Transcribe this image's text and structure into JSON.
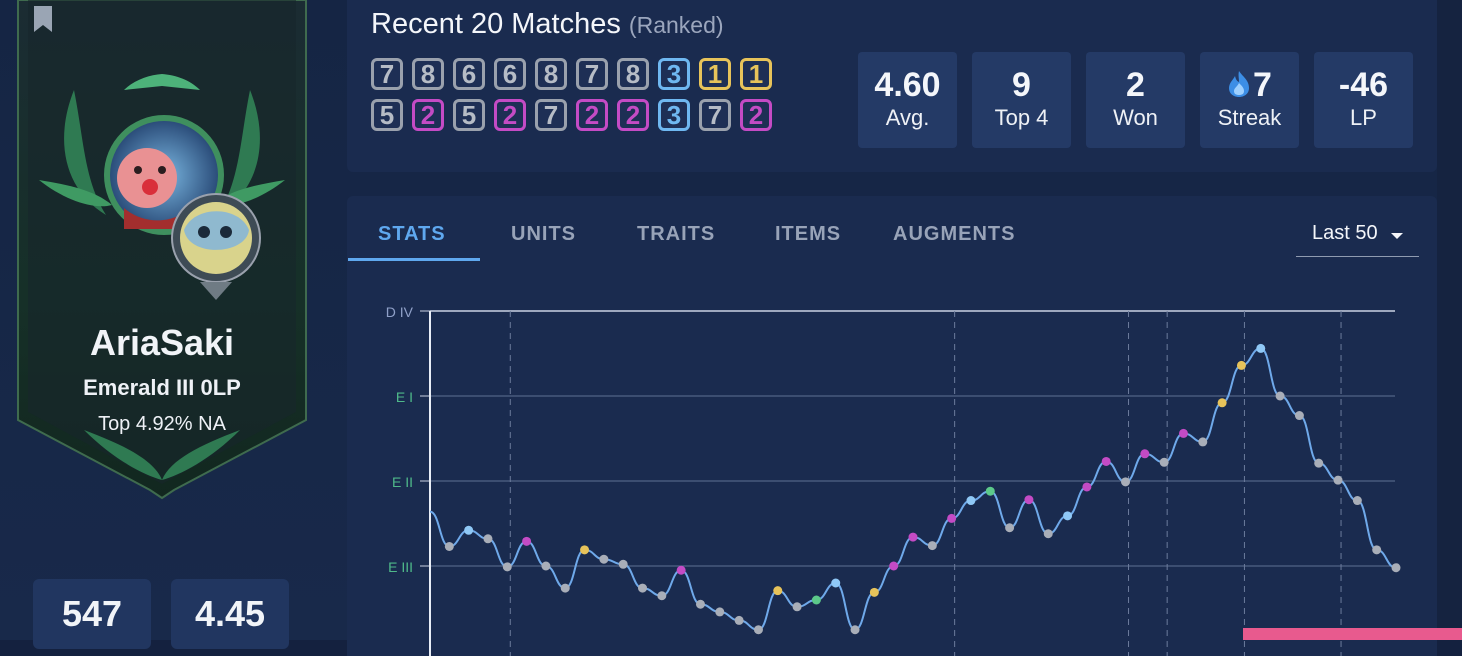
{
  "profile": {
    "name": "AriaSaki",
    "rank": "Emerald III 0LP",
    "top": "Top 4.92% NA",
    "bottom_stats": [
      "547",
      "4.45"
    ]
  },
  "matches": {
    "title": "Recent 20 Matches",
    "subtitle": "(Ranked)",
    "placements": [
      [
        7,
        8,
        6,
        6,
        8,
        7,
        8,
        3,
        1,
        1
      ],
      [
        5,
        2,
        5,
        2,
        7,
        2,
        2,
        3,
        7,
        2
      ]
    ],
    "summary": [
      {
        "value": "4.60",
        "label": "Avg."
      },
      {
        "value": "9",
        "label": "Top 4"
      },
      {
        "value": "2",
        "label": "Won"
      },
      {
        "value": "7",
        "label": "Streak",
        "icon": "flame-icon"
      },
      {
        "value": "-46",
        "label": "LP"
      }
    ]
  },
  "tabs": [
    "STATS",
    "UNITS",
    "TRAITS",
    "ITEMS",
    "AUGMENTS"
  ],
  "active_tab": "STATS",
  "filter": {
    "selected": "Last 50"
  },
  "colors": {
    "accent": "#5fa8ef",
    "placement_first": "#e7c35a",
    "placement_second": "#c44bc5",
    "placement_third": "#6fb8f1",
    "placement_other": "#9aa1ad",
    "point_green": "#5cc98a",
    "line": "#6fa9ea"
  },
  "chart_data": {
    "type": "line",
    "title": "",
    "xlabel": "",
    "ylabel": "",
    "y_ticks": [
      "D IV",
      "E I",
      "E II",
      "E III"
    ],
    "ylim": [
      "E III",
      "D IV"
    ],
    "grid": true,
    "points_comment": "y = rank progress where 0=E III, 1=E II, 2=E I, 3=D IV; color = placement group (1,2,3,4-8,green)",
    "points": [
      {
        "y": 0.64,
        "c": "o"
      },
      {
        "y": 0.23,
        "c": "o"
      },
      {
        "y": 0.42,
        "c": "b"
      },
      {
        "y": 0.32,
        "c": "o"
      },
      {
        "y": -0.01,
        "c": "o"
      },
      {
        "y": 0.29,
        "c": "p"
      },
      {
        "y": 0.0,
        "c": "o"
      },
      {
        "y": -0.26,
        "c": "o"
      },
      {
        "y": 0.19,
        "c": "y"
      },
      {
        "y": 0.08,
        "c": "o"
      },
      {
        "y": 0.02,
        "c": "o"
      },
      {
        "y": -0.26,
        "c": "o"
      },
      {
        "y": -0.35,
        "c": "o"
      },
      {
        "y": -0.05,
        "c": "p"
      },
      {
        "y": -0.45,
        "c": "o"
      },
      {
        "y": -0.54,
        "c": "o"
      },
      {
        "y": -0.64,
        "c": "o"
      },
      {
        "y": -0.75,
        "c": "o"
      },
      {
        "y": -0.29,
        "c": "y"
      },
      {
        "y": -0.48,
        "c": "o"
      },
      {
        "y": -0.4,
        "c": "g"
      },
      {
        "y": -0.2,
        "c": "b"
      },
      {
        "y": -0.75,
        "c": "o"
      },
      {
        "y": -0.31,
        "c": "y"
      },
      {
        "y": 0.0,
        "c": "p"
      },
      {
        "y": 0.34,
        "c": "p"
      },
      {
        "y": 0.24,
        "c": "o"
      },
      {
        "y": 0.56,
        "c": "p"
      },
      {
        "y": 0.77,
        "c": "b"
      },
      {
        "y": 0.88,
        "c": "g"
      },
      {
        "y": 0.45,
        "c": "o"
      },
      {
        "y": 0.78,
        "c": "p"
      },
      {
        "y": 0.38,
        "c": "o"
      },
      {
        "y": 0.59,
        "c": "b"
      },
      {
        "y": 0.93,
        "c": "p"
      },
      {
        "y": 1.23,
        "c": "p"
      },
      {
        "y": 0.99,
        "c": "o"
      },
      {
        "y": 1.32,
        "c": "p"
      },
      {
        "y": 1.22,
        "c": "o"
      },
      {
        "y": 1.56,
        "c": "p"
      },
      {
        "y": 1.46,
        "c": "o"
      },
      {
        "y": 1.92,
        "c": "y"
      },
      {
        "y": 2.36,
        "c": "y"
      },
      {
        "y": 2.56,
        "c": "b"
      },
      {
        "y": 2.0,
        "c": "o"
      },
      {
        "y": 1.77,
        "c": "o"
      },
      {
        "y": 1.21,
        "c": "o"
      },
      {
        "y": 1.01,
        "c": "o"
      },
      {
        "y": 0.77,
        "c": "o"
      },
      {
        "y": 0.19,
        "c": "o"
      },
      {
        "y": -0.02,
        "c": "o"
      }
    ],
    "vertical_markers": [
      4,
      27,
      36,
      38,
      42,
      47
    ]
  }
}
